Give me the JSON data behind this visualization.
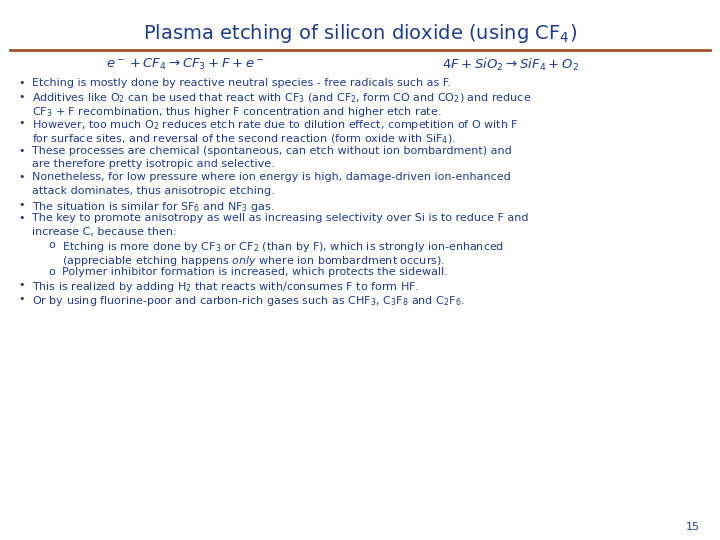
{
  "title": "Plasma etching of silicon dioxide (using CF$_4$)",
  "title_color": "#1F3D8C",
  "title_fontsize": 14,
  "separator_color": "#A0522D",
  "bg_color": "#FFFFFF",
  "text_color": "#1F3D8C",
  "equation1": "$e^- + CF_4 \\rightarrow CF_3 + F + e^-$",
  "equation2": "$4F + SiO_2 \\rightarrow SiF_4 + O_2$",
  "text_fontsize": 8.0,
  "eq_fontsize": 9.5,
  "page_number": "15"
}
